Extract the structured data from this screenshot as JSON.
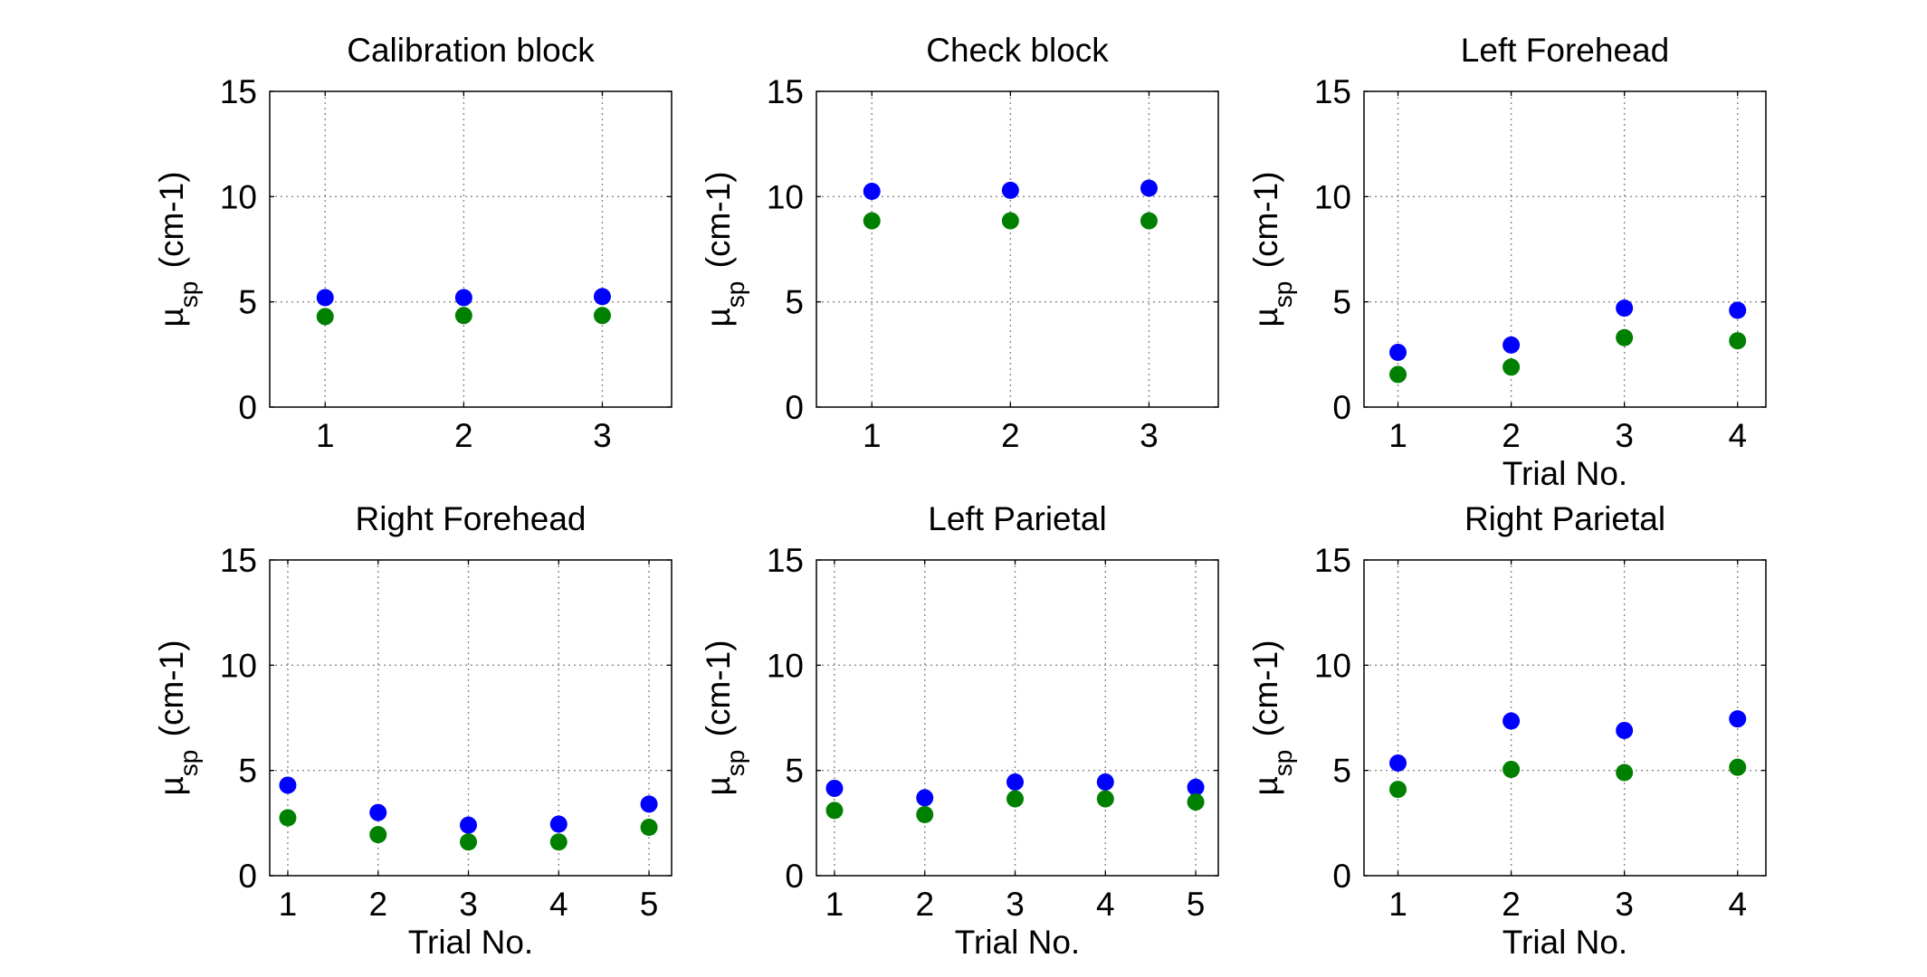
{
  "chart_data": [
    {
      "type": "scatter",
      "title": "Calibration block",
      "ylabel": "µsp (cm-1)",
      "xlabel": "",
      "xlim": [
        0.6,
        3.5
      ],
      "ylim": [
        0,
        15
      ],
      "xticks": [
        1,
        2,
        3
      ],
      "yticks": [
        0,
        5,
        10,
        15
      ],
      "grid": true,
      "series": [
        {
          "color": "#0000ff",
          "x": [
            1,
            2,
            3
          ],
          "y": [
            5.2,
            5.2,
            5.25
          ]
        },
        {
          "color": "#008000",
          "x": [
            1,
            2,
            3
          ],
          "y": [
            4.3,
            4.35,
            4.35
          ]
        }
      ]
    },
    {
      "type": "scatter",
      "title": "Check block",
      "ylabel": "µsp (cm-1)",
      "xlabel": "",
      "xlim": [
        0.6,
        3.5
      ],
      "ylim": [
        0,
        15
      ],
      "xticks": [
        1,
        2,
        3
      ],
      "yticks": [
        0,
        5,
        10,
        15
      ],
      "grid": true,
      "series": [
        {
          "color": "#0000ff",
          "x": [
            1,
            2,
            3
          ],
          "y": [
            10.25,
            10.3,
            10.4
          ]
        },
        {
          "color": "#008000",
          "x": [
            1,
            2,
            3
          ],
          "y": [
            8.85,
            8.85,
            8.85
          ]
        }
      ]
    },
    {
      "type": "scatter",
      "title": "Left Forehead",
      "ylabel": "µsp (cm-1)",
      "xlabel": "Trial No.",
      "xlim": [
        0.7,
        4.25
      ],
      "ylim": [
        0,
        15
      ],
      "xticks": [
        1,
        2,
        3,
        4
      ],
      "yticks": [
        0,
        5,
        10,
        15
      ],
      "grid": true,
      "series": [
        {
          "color": "#0000ff",
          "x": [
            1,
            2,
            3,
            4
          ],
          "y": [
            2.6,
            2.95,
            4.7,
            4.6
          ]
        },
        {
          "color": "#008000",
          "x": [
            1,
            2,
            3,
            4
          ],
          "y": [
            1.55,
            1.9,
            3.3,
            3.15
          ]
        }
      ]
    },
    {
      "type": "scatter",
      "title": "Right Forehead",
      "ylabel": "µsp (cm-1)",
      "xlabel": "Trial No.",
      "xlim": [
        0.8,
        5.25
      ],
      "ylim": [
        0,
        15
      ],
      "xticks": [
        1,
        2,
        3,
        4,
        5
      ],
      "yticks": [
        0,
        5,
        10,
        15
      ],
      "grid": true,
      "series": [
        {
          "color": "#0000ff",
          "x": [
            1,
            2,
            3,
            4,
            5
          ],
          "y": [
            4.3,
            3.0,
            2.4,
            2.45,
            3.4
          ]
        },
        {
          "color": "#008000",
          "x": [
            1,
            2,
            3,
            4,
            5
          ],
          "y": [
            2.75,
            1.95,
            1.6,
            1.6,
            2.3
          ]
        }
      ]
    },
    {
      "type": "scatter",
      "title": "Left Parietal",
      "ylabel": "µsp (cm-1)",
      "xlabel": "Trial No.",
      "xlim": [
        0.8,
        5.25
      ],
      "ylim": [
        0,
        15
      ],
      "xticks": [
        1,
        2,
        3,
        4,
        5
      ],
      "yticks": [
        0,
        5,
        10,
        15
      ],
      "grid": true,
      "series": [
        {
          "color": "#0000ff",
          "x": [
            1,
            2,
            3,
            4,
            5
          ],
          "y": [
            4.15,
            3.7,
            4.45,
            4.45,
            4.2
          ]
        },
        {
          "color": "#008000",
          "x": [
            1,
            2,
            3,
            4,
            5
          ],
          "y": [
            3.1,
            2.9,
            3.65,
            3.65,
            3.5
          ]
        }
      ]
    },
    {
      "type": "scatter",
      "title": "Right Parietal",
      "ylabel": "µsp (cm-1)",
      "xlabel": "Trial No.",
      "xlim": [
        0.7,
        4.25
      ],
      "ylim": [
        0,
        15
      ],
      "xticks": [
        1,
        2,
        3,
        4
      ],
      "yticks": [
        0,
        5,
        10,
        15
      ],
      "grid": true,
      "series": [
        {
          "color": "#0000ff",
          "x": [
            1,
            2,
            3,
            4
          ],
          "y": [
            5.35,
            7.35,
            6.9,
            7.45
          ]
        },
        {
          "color": "#008000",
          "x": [
            1,
            2,
            3,
            4
          ],
          "y": [
            4.1,
            5.05,
            4.9,
            5.15
          ]
        }
      ]
    }
  ]
}
